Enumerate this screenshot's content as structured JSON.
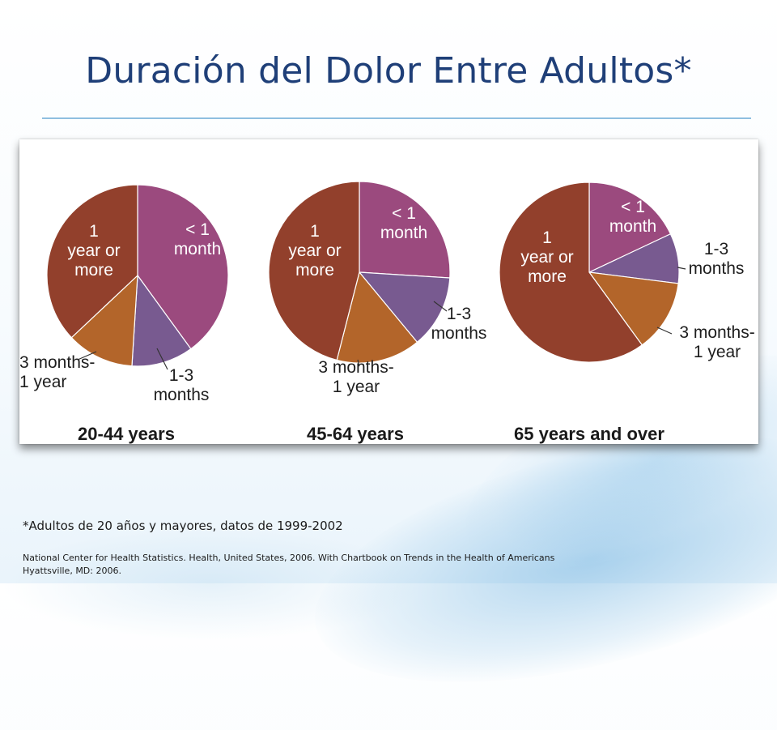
{
  "slide": {
    "title": "Duración del Dolor Entre Adultos*",
    "footnote": "*Adultos de 20 años  y mayores, datos de 1999-2002",
    "source_line1": "National Center for Health Statistics. Health, United States, 2006. With Chartbook on Trends in the Health of Americans",
    "source_line2": "Hyattsville, MD: 2006."
  },
  "colors": {
    "lt1_month": "#9b4a7e",
    "m1_3": "#785a90",
    "m3_12": "#b3652a",
    "y1_plus": "#92402c",
    "title": "#1f3f78"
  },
  "chart_data": {
    "type": "pie",
    "categories": [
      "< 1 month",
      "1-3 months",
      "3 months-1 year",
      "1 year or more"
    ],
    "charts": [
      {
        "title": "20-44 years",
        "values": [
          40,
          11,
          12,
          37
        ],
        "labels": [
          [
            "< 1",
            "month"
          ],
          [
            "1-3",
            "months"
          ],
          [
            "3 months-",
            "1 year"
          ],
          [
            "1",
            "year or",
            "more"
          ]
        ]
      },
      {
        "title": "45-64 years",
        "values": [
          26,
          13,
          15,
          46
        ],
        "labels": [
          [
            "< 1",
            "month"
          ],
          [
            "1-3",
            "months"
          ],
          [
            "3 months-",
            "1 year"
          ],
          [
            "1",
            "year or",
            "more"
          ]
        ]
      },
      {
        "title": "65 years and over",
        "values": [
          18,
          9,
          13,
          60
        ],
        "labels": [
          [
            "< 1",
            "month"
          ],
          [
            "1-3",
            "months"
          ],
          [
            "3 months-",
            "1 year"
          ],
          [
            "1",
            "year or",
            "more"
          ]
        ]
      }
    ]
  }
}
